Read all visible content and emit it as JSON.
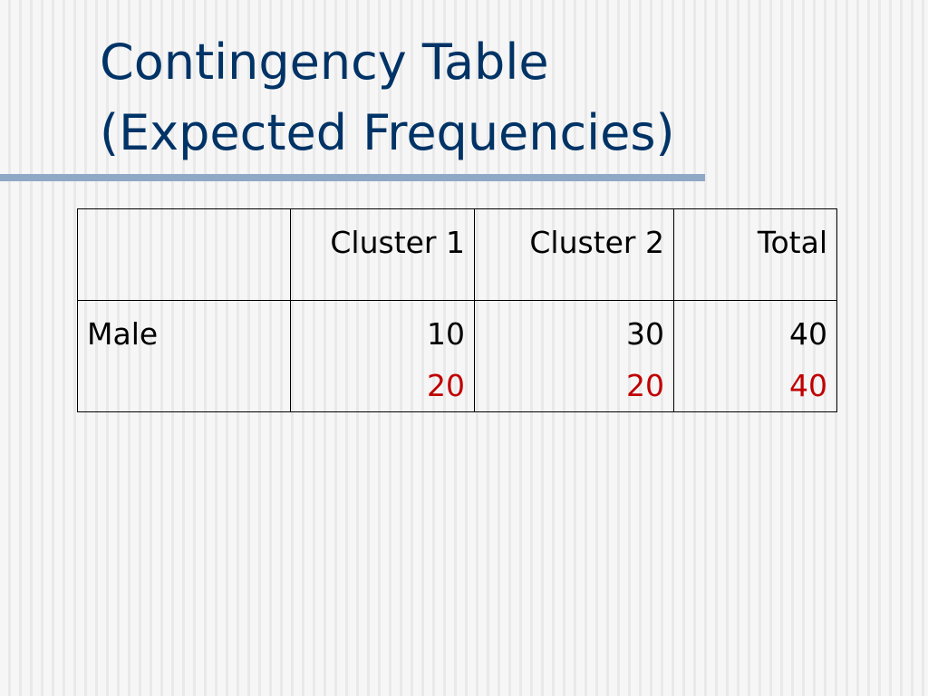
{
  "title": [
    "Contingency Table",
    "(Expected Frequencies)"
  ],
  "table": {
    "columns": [
      "Cluster 1",
      "Cluster 2",
      "Total"
    ],
    "rows": [
      {
        "label": "Male",
        "observed": [
          10,
          30,
          40
        ],
        "expected": [
          20,
          20,
          40
        ]
      }
    ]
  }
}
